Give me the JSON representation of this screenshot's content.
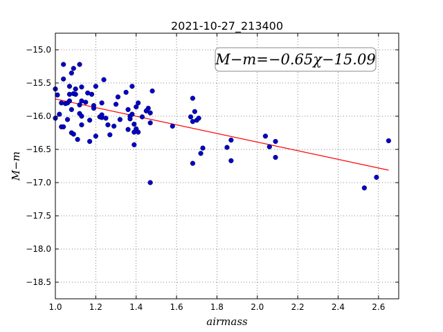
{
  "chart_data": {
    "type": "scatter",
    "title": "2021-10-27_213400",
    "xlabel": "airmass",
    "ylabel": "M−m",
    "xlim": [
      1.0,
      2.7
    ],
    "ylim": [
      -18.75,
      -14.75
    ],
    "ylim_note": "y axis inverted: -14.75 at top, -18.75 at bottom",
    "xticks": [
      "1.0",
      "1.2",
      "1.4",
      "1.6",
      "1.8",
      "2.0",
      "2.2",
      "2.4",
      "2.6"
    ],
    "xtick_values": [
      1.0,
      1.2,
      1.4,
      1.6,
      1.8,
      2.0,
      2.2,
      2.4,
      2.6
    ],
    "yticks": [
      "−15.0",
      "−15.5",
      "−16.0",
      "−16.5",
      "−17.0",
      "−17.5",
      "−18.0",
      "−18.5"
    ],
    "ytick_values": [
      -15.0,
      -15.5,
      -16.0,
      -16.5,
      -17.0,
      -17.5,
      -18.0,
      -18.5
    ],
    "grid": true,
    "annotation": "M−m=−0.65χ−15.09",
    "fit": {
      "slope": -0.65,
      "intercept": -15.09,
      "x_range": [
        1.0,
        2.65
      ],
      "color": "#ff0000"
    },
    "point_color": "#0000cc",
    "points": [
      [
        1.0,
        -16.03
      ],
      [
        1.0,
        -15.59
      ],
      [
        1.01,
        -15.68
      ],
      [
        1.02,
        -15.97
      ],
      [
        1.03,
        -16.16
      ],
      [
        1.03,
        -15.8
      ],
      [
        1.04,
        -16.16
      ],
      [
        1.04,
        -15.44
      ],
      [
        1.04,
        -15.22
      ],
      [
        1.05,
        -15.81
      ],
      [
        1.06,
        -16.05
      ],
      [
        1.06,
        -15.8
      ],
      [
        1.07,
        -15.77
      ],
      [
        1.07,
        -15.67
      ],
      [
        1.07,
        -15.55
      ],
      [
        1.08,
        -15.35
      ],
      [
        1.08,
        -15.9
      ],
      [
        1.08,
        -16.25
      ],
      [
        1.09,
        -15.28
      ],
      [
        1.09,
        -15.66
      ],
      [
        1.09,
        -16.27
      ],
      [
        1.1,
        -15.59
      ],
      [
        1.1,
        -15.67
      ],
      [
        1.11,
        -16.35
      ],
      [
        1.12,
        -15.83
      ],
      [
        1.12,
        -15.96
      ],
      [
        1.12,
        -15.22
      ],
      [
        1.13,
        -16.0
      ],
      [
        1.13,
        -16.13
      ],
      [
        1.13,
        -15.77
      ],
      [
        1.13,
        -15.56
      ],
      [
        1.15,
        -15.79
      ],
      [
        1.16,
        -15.65
      ],
      [
        1.17,
        -16.06
      ],
      [
        1.17,
        -16.38
      ],
      [
        1.18,
        -15.67
      ],
      [
        1.19,
        -15.88
      ],
      [
        1.19,
        -15.84
      ],
      [
        1.2,
        -15.55
      ],
      [
        1.2,
        -16.3
      ],
      [
        1.22,
        -16.01
      ],
      [
        1.23,
        -15.8
      ],
      [
        1.23,
        -16.02
      ],
      [
        1.23,
        -15.98
      ],
      [
        1.24,
        -15.45
      ],
      [
        1.25,
        -16.03
      ],
      [
        1.26,
        -16.13
      ],
      [
        1.27,
        -16.28
      ],
      [
        1.29,
        -16.15
      ],
      [
        1.3,
        -15.82
      ],
      [
        1.31,
        -15.71
      ],
      [
        1.32,
        -16.05
      ],
      [
        1.35,
        -15.64
      ],
      [
        1.36,
        -15.9
      ],
      [
        1.36,
        -16.2
      ],
      [
        1.37,
        -16.04
      ],
      [
        1.37,
        -16.0
      ],
      [
        1.38,
        -15.55
      ],
      [
        1.38,
        -15.97
      ],
      [
        1.39,
        -16.24
      ],
      [
        1.39,
        -16.12
      ],
      [
        1.39,
        -16.43
      ],
      [
        1.4,
        -15.86
      ],
      [
        1.4,
        -16.19
      ],
      [
        1.41,
        -16.24
      ],
      [
        1.41,
        -15.8
      ],
      [
        1.43,
        -16.01
      ],
      [
        1.45,
        -15.92
      ],
      [
        1.46,
        -15.88
      ],
      [
        1.47,
        -15.95
      ],
      [
        1.47,
        -16.1
      ],
      [
        1.47,
        -17.0
      ],
      [
        1.48,
        -15.62
      ],
      [
        1.58,
        -16.15
      ],
      [
        1.67,
        -16.01
      ],
      [
        1.68,
        -16.08
      ],
      [
        1.68,
        -15.73
      ],
      [
        1.69,
        -15.93
      ],
      [
        1.68,
        -16.71
      ],
      [
        1.7,
        -16.06
      ],
      [
        1.71,
        -16.03
      ],
      [
        1.72,
        -16.56
      ],
      [
        1.73,
        -16.48
      ],
      [
        1.85,
        -16.47
      ],
      [
        1.87,
        -16.67
      ],
      [
        1.87,
        -16.36
      ],
      [
        2.04,
        -16.3
      ],
      [
        2.06,
        -16.46
      ],
      [
        2.09,
        -16.38
      ],
      [
        2.09,
        -16.62
      ],
      [
        2.53,
        -17.08
      ],
      [
        2.59,
        -16.92
      ],
      [
        2.65,
        -16.37
      ]
    ]
  }
}
